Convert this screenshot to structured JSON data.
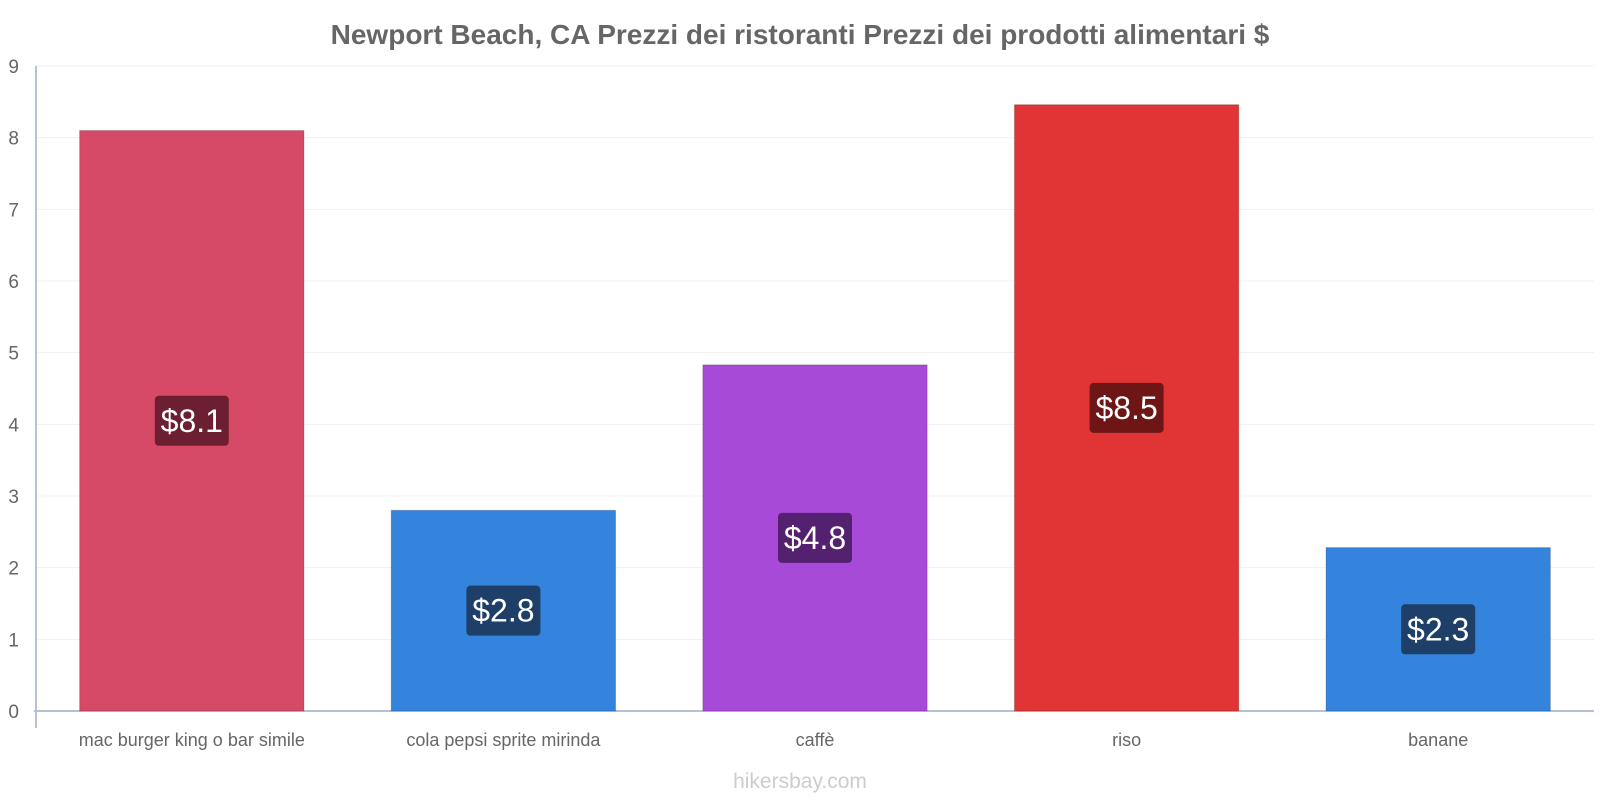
{
  "chart_data": {
    "type": "bar",
    "title": "Newport Beach, CA Prezzi dei ristoranti Prezzi dei prodotti alimentari $",
    "xlabel": "",
    "ylabel": "",
    "ylim": [
      0,
      9
    ],
    "yticks": [
      "0",
      "1",
      "2",
      "3",
      "4",
      "5",
      "6",
      "7",
      "8",
      "9"
    ],
    "grid": true,
    "legend": "none",
    "categories": [
      "mac burger king o bar simile",
      "cola pepsi sprite mirinda",
      "caffè",
      "riso",
      "banane"
    ],
    "values": [
      8.1,
      2.8,
      4.83,
      8.46,
      2.28
    ],
    "value_labels": [
      "$8.1",
      "$2.8",
      "$4.8",
      "$8.5",
      "$2.3"
    ],
    "bar_colors": [
      "#d64a67",
      "#3483dd",
      "#a74ad8",
      "#e03435",
      "#3483dd"
    ],
    "label_box_colors": [
      "#6b1f30",
      "#1d3f68",
      "#532170",
      "#6e1616",
      "#1d3f68"
    ]
  },
  "watermark": "hikersbay.com"
}
